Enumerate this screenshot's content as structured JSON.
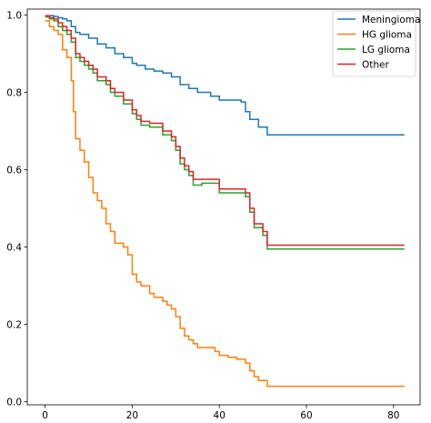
{
  "chart_data": {
    "type": "line",
    "step": true,
    "title": "",
    "xlabel": "",
    "ylabel": "",
    "xlim": [
      -4.1,
      86.1
    ],
    "ylim": [
      -0.0079,
      1.0152
    ],
    "xticks": [
      0,
      20,
      40,
      60,
      80
    ],
    "xtick_labels": [
      "0",
      "20",
      "40",
      "60",
      "80"
    ],
    "yticks": [
      0.0,
      0.2,
      0.4,
      0.6,
      0.8,
      1.0
    ],
    "ytick_labels": [
      "0.0",
      "0.2",
      "0.4",
      "0.6",
      "0.8",
      "1.0"
    ],
    "grid": false,
    "legend_position": "top-right",
    "legend": [
      "Meningioma",
      "HG glioma",
      "LG glioma",
      "Other"
    ],
    "series": [
      {
        "name": "Meningioma",
        "color": "#1f77b4",
        "x": [
          0,
          2,
          3,
          4,
          5,
          6,
          7,
          8,
          10,
          12,
          14,
          16,
          18,
          20,
          21,
          23,
          25,
          27,
          29,
          31,
          33,
          35,
          38,
          40,
          45,
          46,
          47,
          49,
          51,
          82.5
        ],
        "y": [
          0.998,
          0.996,
          0.993,
          0.99,
          0.985,
          0.97,
          0.955,
          0.95,
          0.94,
          0.925,
          0.915,
          0.9,
          0.89,
          0.875,
          0.87,
          0.86,
          0.855,
          0.85,
          0.84,
          0.82,
          0.81,
          0.8,
          0.79,
          0.78,
          0.775,
          0.75,
          0.73,
          0.71,
          0.69,
          0.69
        ]
      },
      {
        "name": "HG glioma",
        "color": "#ff7f0e",
        "x": [
          0,
          1,
          2,
          3,
          4,
          5,
          6,
          6.5,
          7,
          8,
          9,
          10,
          11,
          12,
          13,
          14,
          15,
          16,
          17,
          18,
          19,
          20,
          21,
          22,
          23,
          24,
          25,
          26,
          27,
          28,
          29,
          30,
          31,
          32,
          33,
          34,
          35,
          37,
          39,
          40,
          42,
          44,
          46,
          47,
          48,
          49,
          51,
          82.5
        ],
        "y": [
          0.985,
          0.97,
          0.96,
          0.95,
          0.91,
          0.89,
          0.83,
          0.75,
          0.68,
          0.65,
          0.62,
          0.58,
          0.54,
          0.52,
          0.5,
          0.46,
          0.44,
          0.41,
          0.41,
          0.4,
          0.38,
          0.33,
          0.31,
          0.3,
          0.3,
          0.28,
          0.27,
          0.27,
          0.26,
          0.25,
          0.24,
          0.22,
          0.19,
          0.17,
          0.16,
          0.15,
          0.14,
          0.14,
          0.13,
          0.12,
          0.115,
          0.11,
          0.1,
          0.08,
          0.065,
          0.055,
          0.04,
          0.04
        ]
      },
      {
        "name": "LG glioma",
        "color": "#2ca02c",
        "x": [
          0,
          1,
          2,
          3,
          4,
          5,
          6,
          7,
          8,
          9,
          10,
          11,
          12,
          14,
          15,
          16,
          18,
          20,
          21,
          22,
          24,
          27,
          29,
          30,
          31,
          32,
          33,
          34,
          36,
          40,
          42,
          44,
          46,
          47,
          48,
          50,
          51,
          82.5
        ],
        "y": [
          0.995,
          0.99,
          0.985,
          0.97,
          0.96,
          0.95,
          0.93,
          0.89,
          0.88,
          0.87,
          0.86,
          0.85,
          0.83,
          0.82,
          0.8,
          0.79,
          0.77,
          0.745,
          0.73,
          0.715,
          0.71,
          0.69,
          0.675,
          0.65,
          0.615,
          0.6,
          0.585,
          0.56,
          0.565,
          0.54,
          0.54,
          0.54,
          0.53,
          0.49,
          0.45,
          0.43,
          0.395,
          0.395
        ]
      },
      {
        "name": "Other",
        "color": "#d62728",
        "x": [
          0,
          1,
          2,
          3,
          4,
          5,
          6,
          7,
          8,
          9,
          10,
          11,
          12,
          14,
          15,
          16,
          18,
          20,
          21,
          22,
          24,
          27,
          29,
          30,
          31,
          32,
          33,
          34,
          36,
          40,
          42,
          44,
          46,
          47,
          48,
          50,
          51,
          82.5
        ],
        "y": [
          0.998,
          0.993,
          0.99,
          0.98,
          0.97,
          0.96,
          0.94,
          0.9,
          0.89,
          0.88,
          0.87,
          0.86,
          0.84,
          0.83,
          0.81,
          0.8,
          0.78,
          0.755,
          0.74,
          0.725,
          0.72,
          0.7,
          0.685,
          0.66,
          0.63,
          0.61,
          0.595,
          0.575,
          0.575,
          0.55,
          0.55,
          0.55,
          0.54,
          0.5,
          0.46,
          0.44,
          0.405,
          0.405
        ]
      }
    ]
  }
}
